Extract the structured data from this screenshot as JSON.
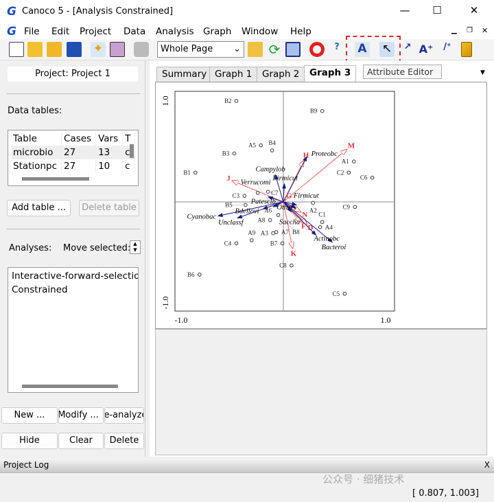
{
  "window": {
    "title": "Canoco 5 - [Analysis Constrained]",
    "minimize": "—",
    "maximize": "☐",
    "close": "✕",
    "logo": "G"
  },
  "menu": [
    "File",
    "Edit",
    "Project",
    "Data",
    "Analysis",
    "Graph",
    "Window",
    "Help"
  ],
  "toolbar": {
    "zoom_select": "Whole Page",
    "tooltip": "Attribute Editor",
    "highlight_color": "#e0202a",
    "icons": [
      "new-icon",
      "open-icon",
      "open-folder-icon",
      "save-icon",
      "wizard-icon",
      "graph-wizard-icon",
      "print-icon",
      "create-graph-icon",
      "refresh-icon",
      "layout-icon",
      "help-lifebuoy-icon",
      "context-help-icon",
      "attribute-editor-icon",
      "select-pointer-icon",
      "add-arrow-icon",
      "add-text-icon",
      "add-line-icon",
      "ruler-icon"
    ]
  },
  "left": {
    "project_button": "Project: Project 1",
    "data_tables_label": "Data tables:",
    "table": {
      "headers": [
        "Table",
        "Cases",
        "Vars",
        "T"
      ],
      "rows": [
        [
          "microbio",
          "27",
          "13",
          "c"
        ],
        [
          "Stationpc",
          "27",
          "10",
          "c"
        ]
      ]
    },
    "add_table": "Add table ...",
    "delete_table": "Delete table",
    "analyses_label": "Analyses:",
    "move_selected": "Move selected:",
    "analyses": [
      "Interactive-forward-selectio",
      "Constrained"
    ],
    "buttons_row1": [
      "New ...",
      "Modify ...",
      "Re-analyze"
    ],
    "buttons_row2": [
      "Hide",
      "Clear",
      "Delete"
    ]
  },
  "tabs": [
    {
      "label": "Summary"
    },
    {
      "label": "Graph 1"
    },
    {
      "label": "Graph 2"
    },
    {
      "label": "Graph 3",
      "active": true
    }
  ],
  "log": {
    "title": "Project Log",
    "close": "X"
  },
  "status": {
    "coord": "[ 0.807, 1.003]",
    "watermark": "公众号 · 细猪技术"
  },
  "chart_data": {
    "type": "scatter",
    "subtype": "ordination-biplot",
    "xlim": [
      -1.0,
      1.0
    ],
    "ylim": [
      -1.0,
      1.0
    ],
    "x_ticks": [
      "-1.0",
      "1.0"
    ],
    "y_ticks": [
      "1.0",
      "-1.0"
    ],
    "grid": false,
    "colors": {
      "species": "#1a1a80",
      "env": "#f06060",
      "env_label": "#e03040",
      "samples": "#333333"
    },
    "samples": [
      {
        "label": "B2",
        "x": -0.46,
        "y": 1.0
      },
      {
        "label": "B9",
        "x": 0.38,
        "y": 0.9
      },
      {
        "label": "A5",
        "x": -0.22,
        "y": 0.56
      },
      {
        "label": "B4",
        "x": -0.11,
        "y": 0.51
      },
      {
        "label": "B3",
        "x": -0.48,
        "y": 0.48
      },
      {
        "label": "B1",
        "x": -0.86,
        "y": 0.29
      },
      {
        "label": "A1",
        "x": 0.69,
        "y": 0.4
      },
      {
        "label": "C2",
        "x": 0.64,
        "y": 0.29
      },
      {
        "label": "C6",
        "x": 0.87,
        "y": 0.24
      },
      {
        "label": "C7",
        "x": -0.25,
        "y": 0.09
      },
      {
        "label": "A6",
        "x": -0.15,
        "y": 0.1
      },
      {
        "label": "C3",
        "x": -0.38,
        "y": 0.06
      },
      {
        "label": "A2",
        "x": 0.29,
        "y": -0.01
      },
      {
        "label": "C9",
        "x": 0.7,
        "y": -0.05
      },
      {
        "label": "C1",
        "x": 0.38,
        "y": -0.2
      },
      {
        "label": "A4",
        "x": 0.36,
        "y": -0.25
      },
      {
        "label": "A7",
        "x": -0.07,
        "y": -0.3
      },
      {
        "label": "A3",
        "x": -0.1,
        "y": -0.31
      },
      {
        "label": "C4",
        "x": -0.46,
        "y": -0.41
      },
      {
        "label": "A9",
        "x": -0.31,
        "y": -0.38
      },
      {
        "label": "B7",
        "x": -0.01,
        "y": -0.41
      },
      {
        "label": "B8",
        "x": -0.05,
        "y": -0.13
      },
      {
        "label": "A8",
        "x": -0.13,
        "y": -0.18
      },
      {
        "label": "B5",
        "x": -0.37,
        "y": -0.03
      },
      {
        "label": "C8",
        "x": 0.08,
        "y": -0.63
      },
      {
        "label": "B6",
        "x": -0.82,
        "y": -0.72
      },
      {
        "label": "C5",
        "x": 0.6,
        "y": -0.91
      }
    ],
    "species": [
      {
        "label": "Proteobc",
        "x": 0.23,
        "y": 0.45
      },
      {
        "label": "Campylob",
        "x": -0.08,
        "y": 0.27
      },
      {
        "label": "Firmicut",
        "x": 0.01,
        "y": 0.18
      },
      {
        "label": "Patescib",
        "x": -0.15,
        "y": 0.05
      },
      {
        "label": "Cyanobac",
        "x": -0.64,
        "y": -0.14
      },
      {
        "label": "Unclassf",
        "x": -0.45,
        "y": -0.16
      },
      {
        "label": "Bdellovi",
        "x": -0.2,
        "y": -0.07
      },
      {
        "label": "Verrucomi",
        "x": -0.1,
        "y": -0.05
      },
      {
        "label": "Firmicut",
        "x": 0.12,
        "y": -0.06
      },
      {
        "label": "Others",
        "x": 0.13,
        "y": -0.03
      },
      {
        "label": "Saccha",
        "x": 0.08,
        "y": -0.1
      },
      {
        "label": "Actinobc",
        "x": 0.32,
        "y": -0.33
      },
      {
        "label": "Bacteroi",
        "x": 0.48,
        "y": -0.4
      }
    ],
    "env": [
      {
        "label": "M",
        "x": 0.62,
        "y": 0.52
      },
      {
        "label": "H",
        "x": 0.2,
        "y": 0.41
      },
      {
        "label": "J",
        "x": -0.5,
        "y": 0.21
      },
      {
        "label": "G",
        "x": 0.02,
        "y": 0.02
      },
      {
        "label": "N",
        "x": 0.17,
        "y": -0.1
      },
      {
        "label": "F",
        "x": 0.17,
        "y": -0.2
      },
      {
        "label": "D",
        "x": 0.23,
        "y": -0.22
      },
      {
        "label": "K",
        "x": 0.09,
        "y": -0.46
      }
    ]
  }
}
